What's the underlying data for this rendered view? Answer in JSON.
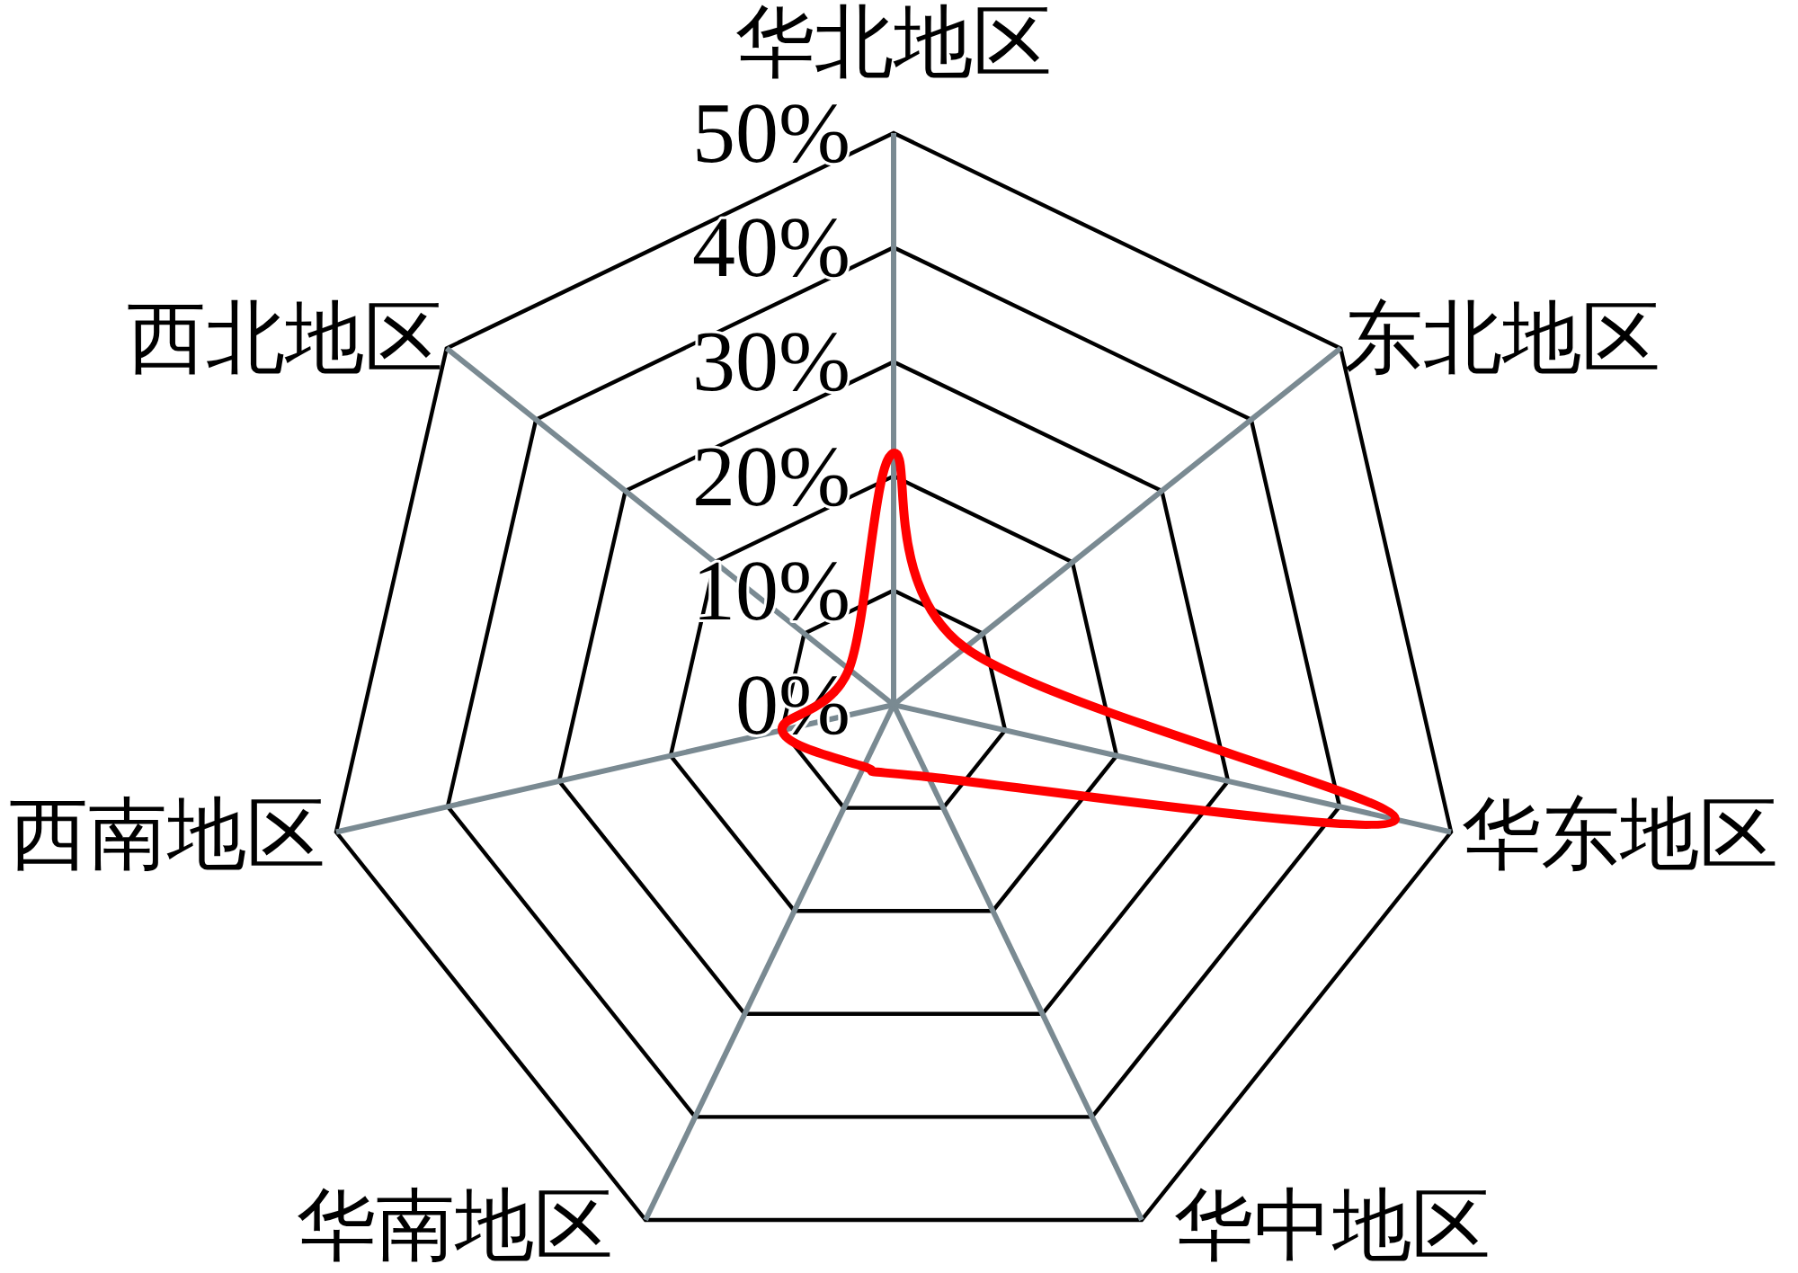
{
  "chart_data": {
    "type": "radar",
    "categories": [
      "华北地区",
      "东北地区",
      "华东地区",
      "华中地区",
      "华南地区",
      "西南地区",
      "西北地区"
    ],
    "series": [
      {
        "color": "#ff0000",
        "values": [
          22,
          8,
          45,
          7,
          6,
          10,
          5
        ]
      }
    ],
    "ylim": [
      0,
      50
    ],
    "yticks": [
      {
        "value": 0,
        "label": "0%"
      },
      {
        "value": 10,
        "label": "10%"
      },
      {
        "value": 20,
        "label": "20%"
      },
      {
        "value": 30,
        "label": "30%"
      },
      {
        "value": 40,
        "label": "40%"
      },
      {
        "value": 50,
        "label": "50%"
      }
    ],
    "grid": true,
    "line_style": "solid"
  }
}
